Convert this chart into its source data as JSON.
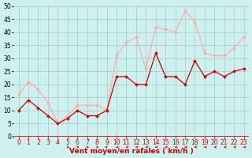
{
  "hours": [
    0,
    1,
    2,
    3,
    4,
    5,
    6,
    7,
    8,
    9,
    10,
    11,
    12,
    13,
    14,
    15,
    16,
    17,
    18,
    19,
    20,
    21,
    22,
    23
  ],
  "wind_mean": [
    10,
    14,
    11,
    8,
    5,
    7,
    10,
    8,
    8,
    10,
    23,
    23,
    20,
    20,
    32,
    23,
    23,
    20,
    29,
    23,
    25,
    23,
    25,
    26
  ],
  "wind_gust": [
    16,
    21,
    18,
    13,
    5,
    8,
    12,
    12,
    12,
    10,
    31,
    36,
    38,
    26,
    42,
    41,
    40,
    48,
    44,
    32,
    31,
    31,
    34,
    38
  ],
  "bg_color": "#cef0ee",
  "grid_color": "#a0ccc8",
  "mean_color": "#cc0000",
  "gust_color": "#ffaaaa",
  "xlabel": "Vent moyen/en rafales ( km/h )",
  "xlabel_color": "#cc0000",
  "ylim": [
    0,
    50
  ],
  "yticks": [
    0,
    5,
    10,
    15,
    20,
    25,
    30,
    35,
    40,
    45,
    50
  ],
  "tick_fontsize": 5.5,
  "label_fontsize": 6.5,
  "arrow_angles": [
    90,
    90,
    90,
    90,
    90,
    45,
    45,
    45,
    45,
    135,
    180,
    180,
    180,
    180,
    180,
    180,
    180,
    180,
    180,
    180,
    180,
    180,
    180,
    180
  ]
}
